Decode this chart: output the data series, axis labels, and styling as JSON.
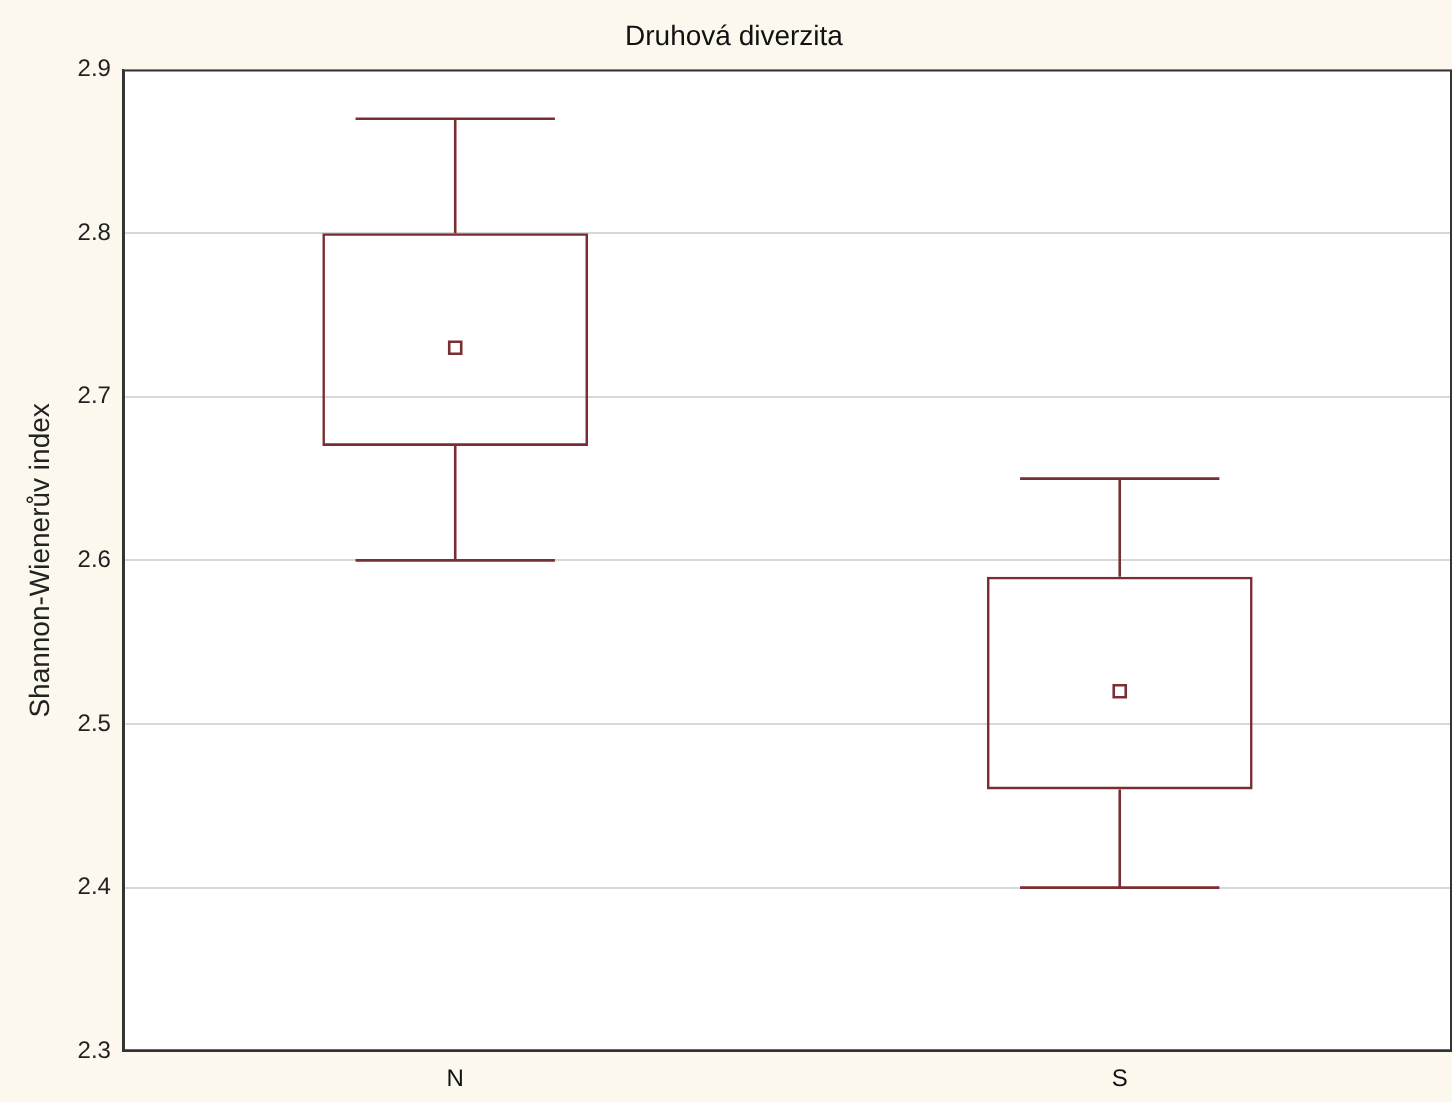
{
  "chart_data": {
    "type": "box",
    "title": "Druhová diverzita",
    "ylabel": "Shannon-Wienerův index",
    "categories": [
      "N",
      "S"
    ],
    "boxes": [
      {
        "low": 2.6,
        "q1": 2.67,
        "median": 2.73,
        "q3": 2.8,
        "high": 2.87
      },
      {
        "low": 2.4,
        "q1": 2.46,
        "median": 2.52,
        "q3": 2.59,
        "high": 2.65
      }
    ],
    "color": "#7a2e33",
    "ylim": [
      2.3,
      2.9
    ],
    "yticks": [
      2.3,
      2.4,
      2.5,
      2.6,
      2.7,
      2.8,
      2.9
    ],
    "grid": "y",
    "marker": "square"
  }
}
